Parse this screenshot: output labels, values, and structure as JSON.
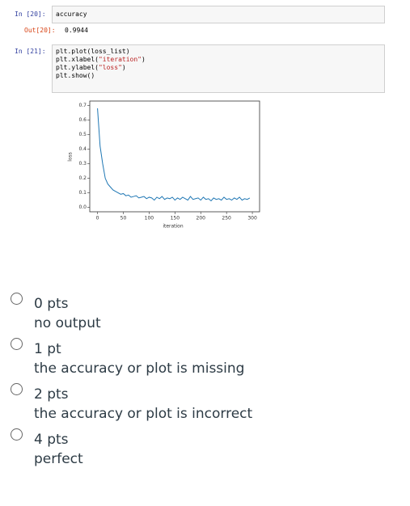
{
  "notebook": {
    "cells": [
      {
        "prompt": "In [20]:",
        "code": [
          [
            "accuracy"
          ]
        ],
        "out_prompt": "Out[20]:",
        "output": "0.9944"
      },
      {
        "prompt": "In [21]:",
        "code": [
          [
            "plt.plot(loss_list)"
          ],
          [
            "plt.xlabel(",
            "\"iteration\"",
            ")"
          ],
          [
            "plt.ylabel(",
            "\"loss\"",
            ")"
          ],
          [
            "plt.show()"
          ]
        ]
      }
    ]
  },
  "chart_data": {
    "type": "line",
    "xlabel": "iteration",
    "ylabel": "loss",
    "color": "#1f77b4",
    "x": [
      0,
      5,
      10,
      15,
      20,
      25,
      30,
      35,
      40,
      45,
      50,
      55,
      60,
      65,
      70,
      75,
      80,
      85,
      90,
      95,
      100,
      105,
      110,
      115,
      120,
      125,
      130,
      135,
      140,
      145,
      150,
      155,
      160,
      165,
      170,
      175,
      180,
      185,
      190,
      195,
      200,
      205,
      210,
      215,
      220,
      225,
      230,
      235,
      240,
      245,
      250,
      255,
      260,
      265,
      270,
      275,
      280,
      285,
      290,
      295
    ],
    "values": [
      0.68,
      0.42,
      0.3,
      0.2,
      0.16,
      0.14,
      0.12,
      0.11,
      0.1,
      0.09,
      0.095,
      0.08,
      0.085,
      0.07,
      0.075,
      0.08,
      0.065,
      0.07,
      0.075,
      0.06,
      0.07,
      0.065,
      0.05,
      0.07,
      0.06,
      0.075,
      0.055,
      0.065,
      0.06,
      0.07,
      0.05,
      0.065,
      0.055,
      0.07,
      0.06,
      0.05,
      0.075,
      0.055,
      0.06,
      0.065,
      0.05,
      0.07,
      0.055,
      0.06,
      0.045,
      0.065,
      0.055,
      0.06,
      0.05,
      0.07,
      0.055,
      0.06,
      0.05,
      0.065,
      0.055,
      0.07,
      0.05,
      0.06,
      0.055,
      0.065
    ],
    "xlim": [
      -15,
      314
    ],
    "ylim": [
      -0.03,
      0.73
    ],
    "xticks": [
      0,
      50,
      100,
      150,
      200,
      250,
      300
    ],
    "yticks": [
      {
        "value": 0,
        "label": "0.0"
      },
      0.1,
      0.2,
      0.3,
      0.4,
      0.5,
      0.6,
      0.7
    ]
  },
  "options": [
    {
      "points": "0 pts",
      "description": "no output"
    },
    {
      "points": "1 pt",
      "description": "the accuracy or plot is missing"
    },
    {
      "points": "2 pts",
      "description": "the accuracy or plot is incorrect"
    },
    {
      "points": "4 pts",
      "description": "perfect"
    }
  ]
}
